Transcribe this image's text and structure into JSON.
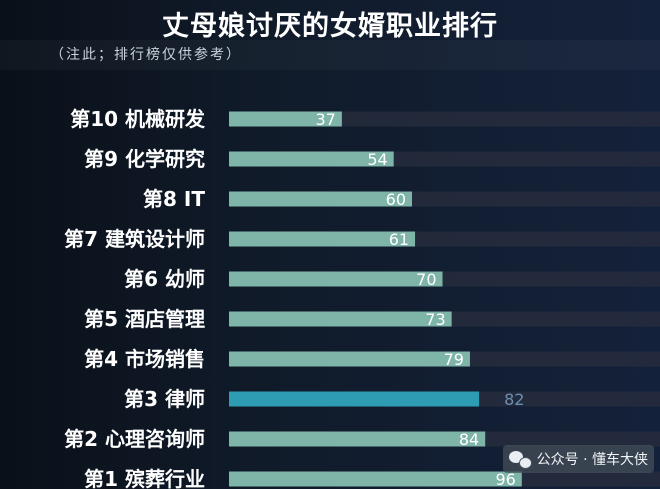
{
  "header": {
    "title": "丈母娘讨厌的女婿职业排行",
    "note": "（注此；排行榜仅供参考）"
  },
  "watermark": {
    "text": "公众号 · 懂车大侠"
  },
  "colors": {
    "bar": "#7fb5a8",
    "highlight": "#2e9db4",
    "track": "#2a2f3f",
    "highlight_value": "#6d8fb1"
  },
  "chart_data": {
    "type": "bar",
    "orientation": "horizontal",
    "title": "丈母娘讨厌的女婿职业排行",
    "categories": [
      "第10 机械研发",
      "第9 化学研究",
      "第8 IT",
      "第7 建筑设计师",
      "第6 幼师",
      "第5 酒店管理",
      "第4 市场销售",
      "第3  律师",
      "第2 心理咨询师",
      "第1  殡葬行业"
    ],
    "values": [
      37,
      54,
      60,
      61,
      70,
      73,
      79,
      82,
      84,
      96
    ],
    "highlight_index": 7,
    "data_labels": true,
    "grid": false,
    "legend": "none"
  }
}
